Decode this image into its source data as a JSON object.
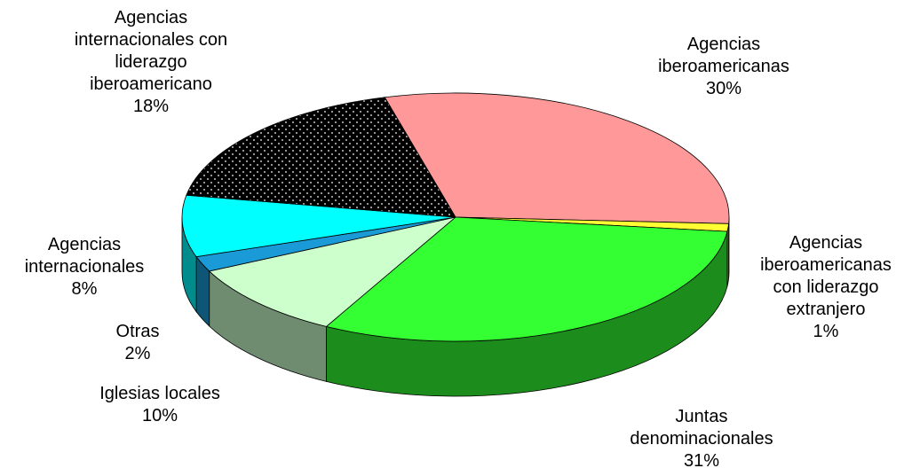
{
  "chart_data": {
    "type": "pie3d",
    "categories": [
      "Agencias iberoamericanas",
      "Agencias iberoamericanas con liderazgo extranjero",
      "Juntas denominacionales",
      "Iglesias locales",
      "Otras",
      "Agencias internacionales",
      "Agencias internacionales con liderazgo iberoamericano"
    ],
    "values": [
      30,
      1,
      31,
      10,
      2,
      8,
      18
    ],
    "value_labels": [
      "30%",
      "1%",
      "31%",
      "10%",
      "2%",
      "8%",
      "18%"
    ],
    "colors": [
      "#ff9999",
      "#ffff33",
      "#33ff33",
      "#ccffcc",
      "#1a9bd7",
      "#00ffff",
      "#000000"
    ]
  }
}
